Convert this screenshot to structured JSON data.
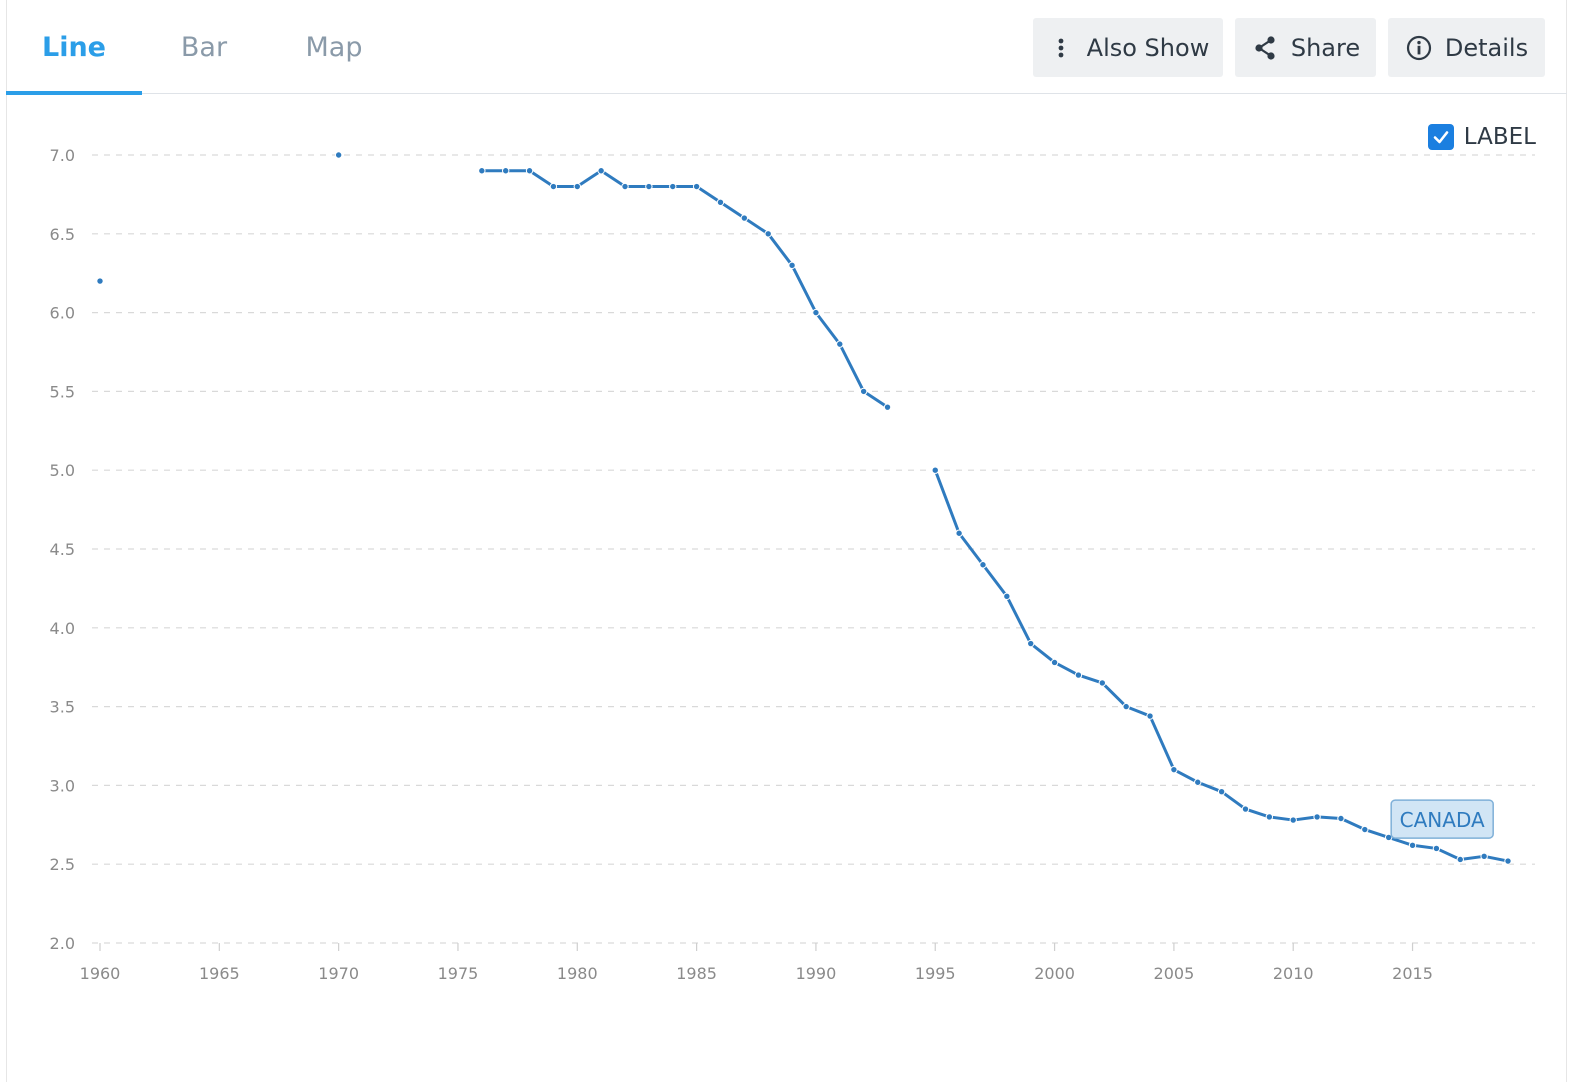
{
  "tabs": [
    {
      "label": "Line",
      "active": true
    },
    {
      "label": "Bar",
      "active": false
    },
    {
      "label": "Map",
      "active": false
    }
  ],
  "toolbar": {
    "also_show_label": "Also Show",
    "share_label": "Share",
    "details_label": "Details"
  },
  "legend": {
    "label": "LABEL",
    "checked": true
  },
  "colors": {
    "accent": "#2b9ee8",
    "series": "#2f7bbf",
    "grid": "#d9d9d9",
    "axis_text": "#8a8a8a"
  },
  "chart_data": {
    "type": "line",
    "title": "",
    "xlabel": "",
    "ylabel": "",
    "xlim": [
      1960,
      2019
    ],
    "ylim": [
      2.0,
      7.0
    ],
    "x_ticks": [
      1960,
      1965,
      1970,
      1975,
      1980,
      1985,
      1990,
      1995,
      2000,
      2005,
      2010,
      2015
    ],
    "y_ticks": [
      "2.0",
      "2.5",
      "3.0",
      "3.5",
      "4.0",
      "4.5",
      "5.0",
      "5.5",
      "6.0",
      "6.5",
      "7.0"
    ],
    "grid": true,
    "series": [
      {
        "name": "CANADA",
        "points": [
          [
            1960,
            6.2
          ],
          [
            1970,
            7.0
          ],
          [
            1976,
            6.9
          ],
          [
            1977,
            6.9
          ],
          [
            1978,
            6.9
          ],
          [
            1979,
            6.8
          ],
          [
            1980,
            6.8
          ],
          [
            1981,
            6.9
          ],
          [
            1982,
            6.8
          ],
          [
            1983,
            6.8
          ],
          [
            1984,
            6.8
          ],
          [
            1985,
            6.8
          ],
          [
            1986,
            6.7
          ],
          [
            1987,
            6.6
          ],
          [
            1988,
            6.5
          ],
          [
            1989,
            6.3
          ],
          [
            1990,
            6.0
          ],
          [
            1991,
            5.8
          ],
          [
            1992,
            5.5
          ],
          [
            1993,
            5.4
          ],
          [
            1995,
            5.0
          ],
          [
            1996,
            4.6
          ],
          [
            1997,
            4.4
          ],
          [
            1998,
            4.2
          ],
          [
            1999,
            3.9
          ],
          [
            2000,
            3.78
          ],
          [
            2001,
            3.7
          ],
          [
            2002,
            3.65
          ],
          [
            2003,
            3.5
          ],
          [
            2004,
            3.44
          ],
          [
            2005,
            3.1
          ],
          [
            2006,
            3.02
          ],
          [
            2007,
            2.96
          ],
          [
            2008,
            2.85
          ],
          [
            2009,
            2.8
          ],
          [
            2010,
            2.78
          ],
          [
            2011,
            2.8
          ],
          [
            2012,
            2.79
          ],
          [
            2013,
            2.72
          ],
          [
            2014,
            2.67
          ],
          [
            2015,
            2.62
          ],
          [
            2016,
            2.6
          ],
          [
            2017,
            2.53
          ],
          [
            2018,
            2.55
          ],
          [
            2019,
            2.52
          ]
        ]
      }
    ]
  }
}
